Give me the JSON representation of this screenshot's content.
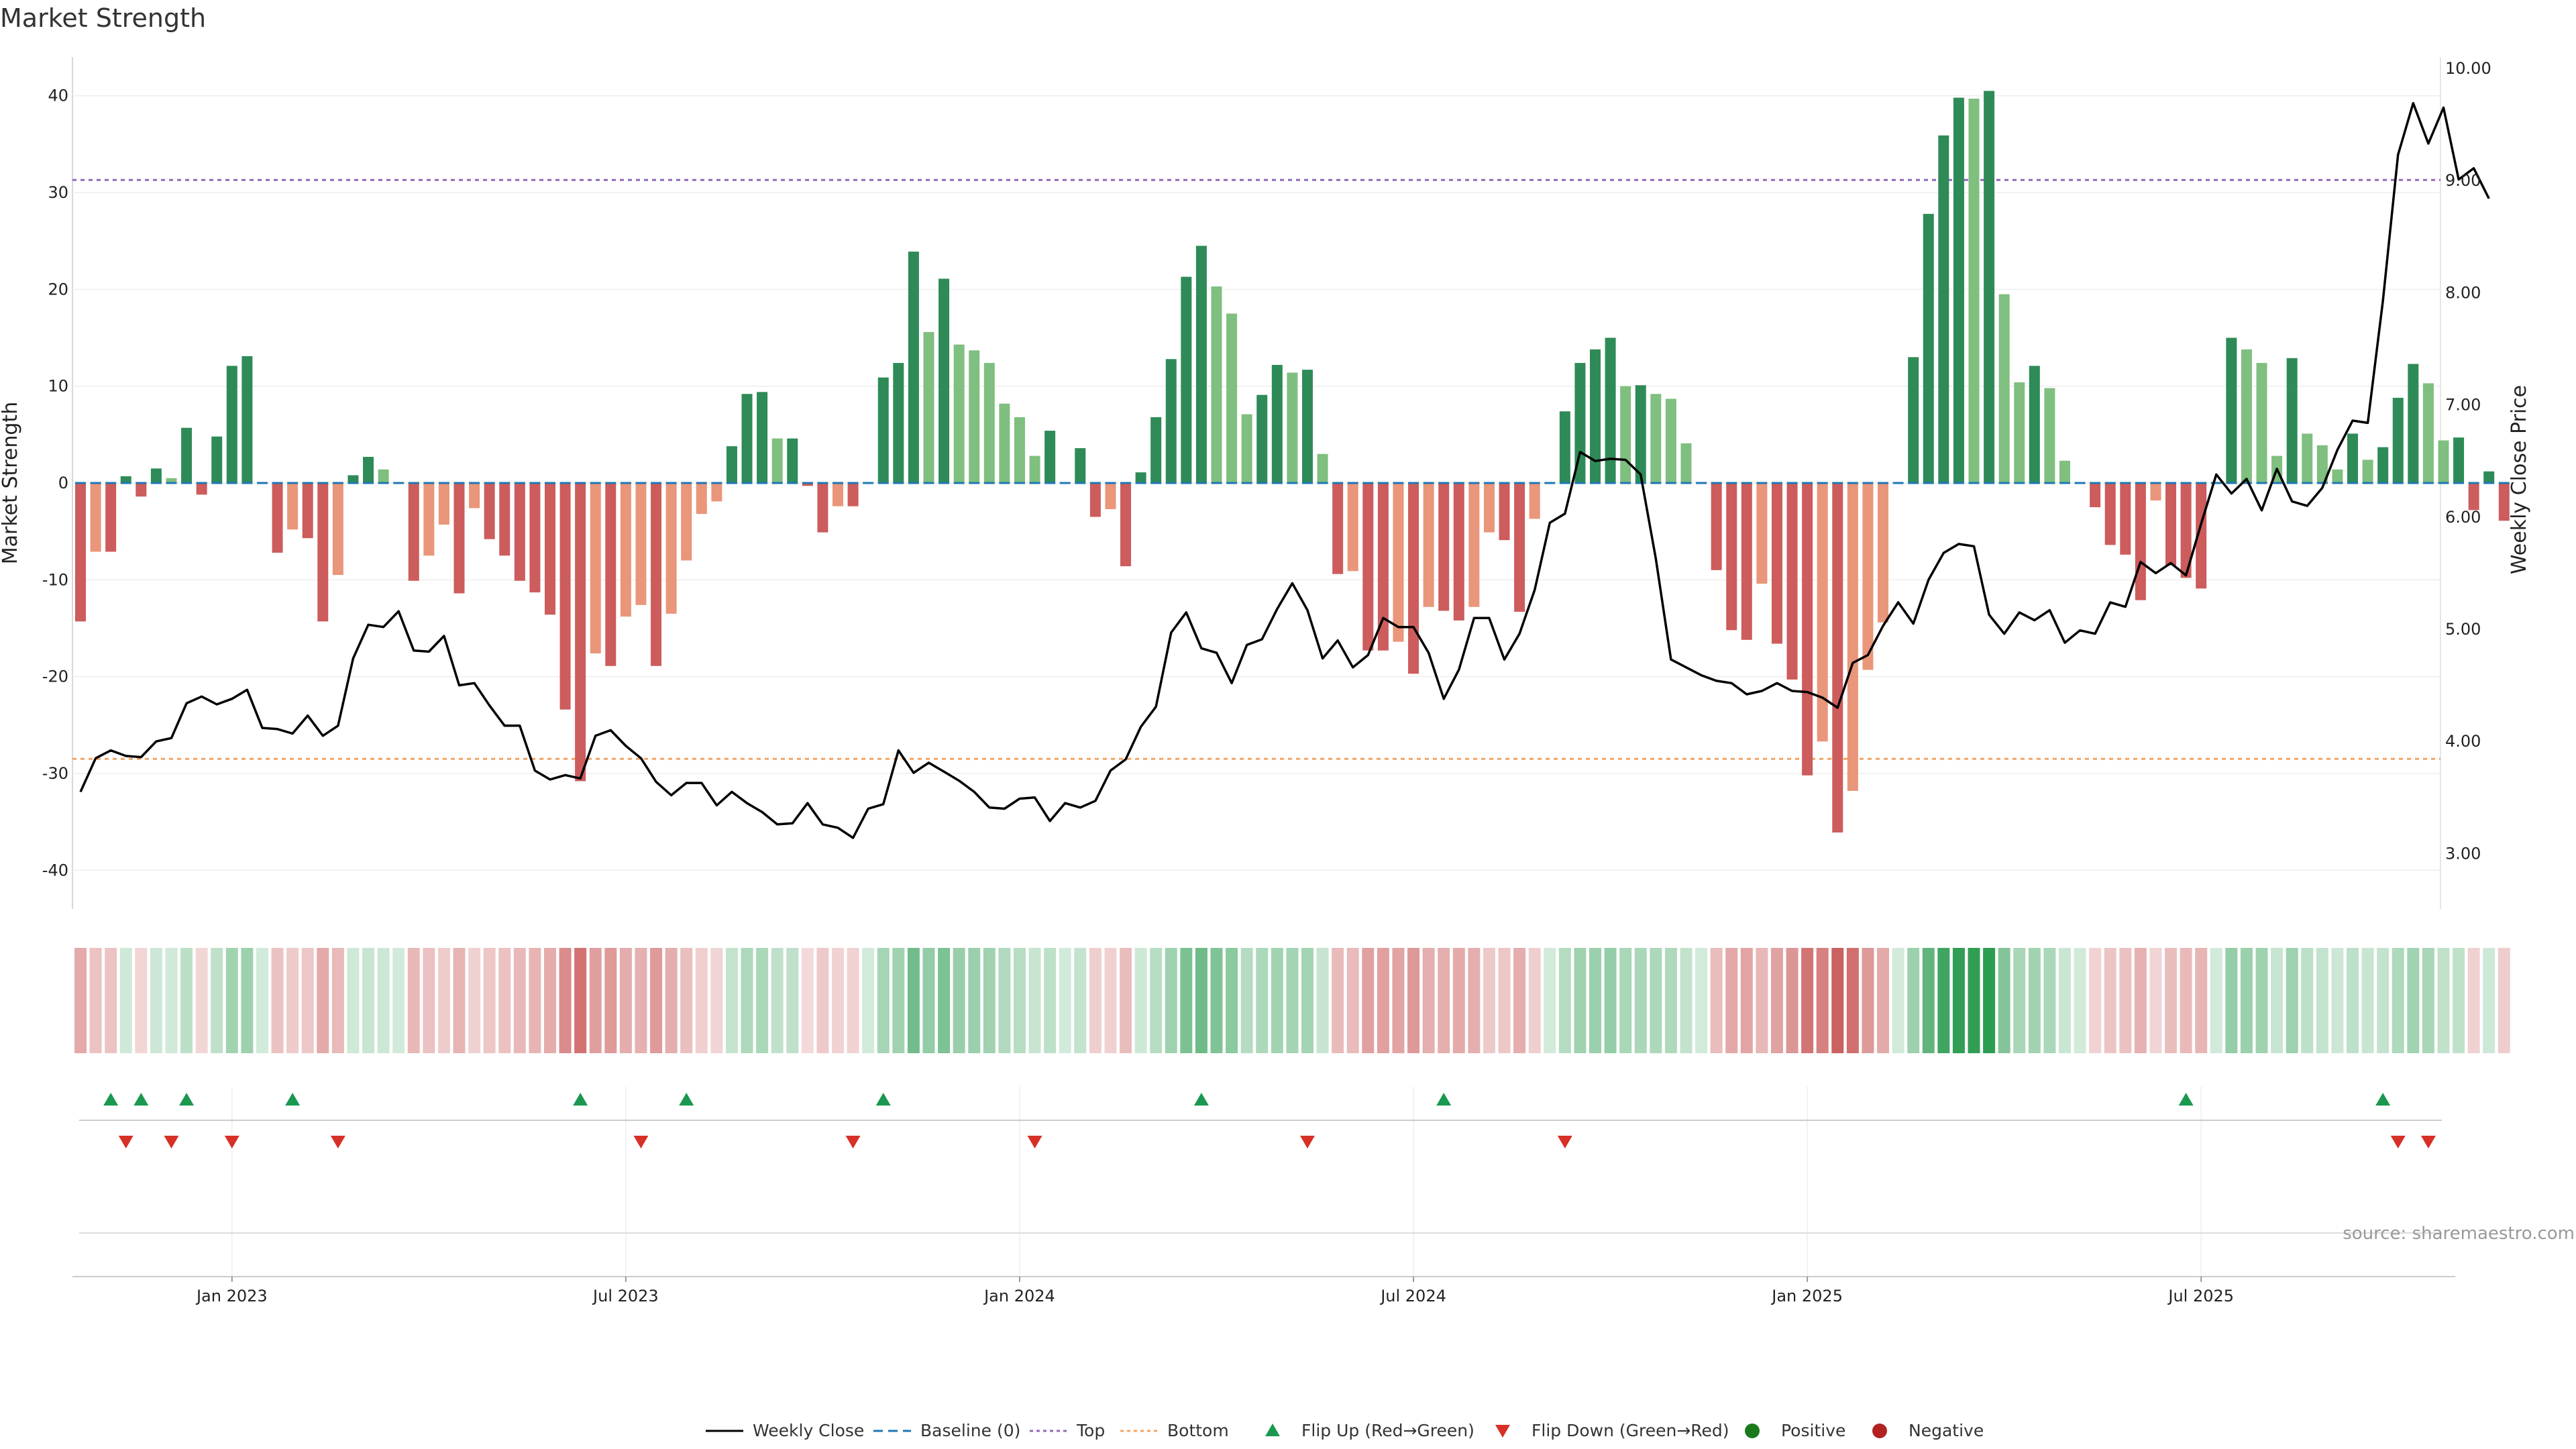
{
  "chart_data": {
    "type": "bar",
    "title": "Market Strength",
    "ylabel": "Market Strength",
    "y2label": "Weekly Close Price",
    "ylim": [
      -44,
      44
    ],
    "y2lim": [
      2.5,
      10.2
    ],
    "yticks": [
      40,
      30,
      20,
      10,
      0,
      -10,
      -20,
      -30,
      -40
    ],
    "y2ticks": [
      "10.00",
      "9.00",
      "8.00",
      "7.00",
      "6.00",
      "5.00",
      "4.00",
      "3.00"
    ],
    "xticks": [
      {
        "label": "Jan 2023",
        "week": 10
      },
      {
        "label": "Jul 2023",
        "week": 36
      },
      {
        "label": "Jan 2024",
        "week": 62
      },
      {
        "label": "Jul 2024",
        "week": 88
      },
      {
        "label": "Jan 2025",
        "week": 114
      },
      {
        "label": "Jul 2025",
        "week": 140
      }
    ],
    "top_line": 31.3,
    "bottom_line": -28.5,
    "baseline": 0,
    "series": [
      {
        "name": "Market Strength",
        "values": [
          -14.3,
          -7.1,
          -7.1,
          0.7,
          -1.4,
          1.5,
          0.5,
          5.7,
          -1.2,
          4.8,
          12.1,
          13.1,
          0,
          -7.2,
          -4.8,
          -5.7,
          -14.3,
          -9.5,
          0.8,
          2.7,
          1.4,
          0,
          -10.1,
          -7.5,
          -4.3,
          -11.4,
          -2.6,
          -5.8,
          -7.5,
          -10.1,
          -11.3,
          -13.6,
          -23.4,
          -30.8,
          -17.6,
          -18.9,
          -13.8,
          -12.6,
          -18.9,
          -13.5,
          -8.0,
          -3.2,
          -1.9,
          3.8,
          9.2,
          9.4,
          4.6,
          4.6,
          -0.3,
          -5.1,
          -2.4,
          -2.4,
          0,
          10.9,
          12.4,
          23.9,
          15.6,
          21.1,
          14.3,
          13.7,
          12.4,
          8.2,
          6.8,
          2.8,
          5.4,
          0,
          3.6,
          -3.5,
          -2.7,
          -8.6,
          1.1,
          6.8,
          12.8,
          21.3,
          24.5,
          20.3,
          17.5,
          7.1,
          9.1,
          12.2,
          11.4,
          11.7,
          3.0,
          -9.4,
          -9.1,
          -17.3,
          -17.3,
          -16.4,
          -19.7,
          -12.8,
          -13.2,
          -14.2,
          -12.8,
          -5.1,
          -5.9,
          -13.3,
          -3.7,
          0,
          7.4,
          12.4,
          13.8,
          15.0,
          10.0,
          10.1,
          9.2,
          8.7,
          4.1,
          0,
          -9.0,
          -15.2,
          -16.2,
          -10.4,
          -16.6,
          -20.3,
          -30.2,
          -26.7,
          -36.1,
          -31.8,
          -19.3,
          -14.4,
          0,
          13.0,
          27.8,
          35.9,
          39.8,
          39.7,
          40.5,
          19.5,
          10.4,
          12.1,
          9.8,
          2.3,
          0,
          -2.5,
          -6.4,
          -7.4,
          -12.1,
          -1.8,
          -8.5,
          -9.8,
          -10.9,
          0,
          15.0,
          13.8,
          12.4,
          2.8,
          12.9,
          5.1,
          3.9,
          1.4,
          5.1,
          2.4,
          3.7,
          8.8,
          12.3,
          10.3,
          4.4,
          4.7,
          -2.8,
          1.2,
          -3.9
        ]
      },
      {
        "name": "Weekly Close",
        "values": [
          3.55,
          3.85,
          3.92,
          3.87,
          3.86,
          4.0,
          4.03,
          4.34,
          4.4,
          4.33,
          4.38,
          4.46,
          4.12,
          4.11,
          4.07,
          4.23,
          4.05,
          4.14,
          4.74,
          5.04,
          5.02,
          5.16,
          4.81,
          4.8,
          4.94,
          4.5,
          4.52,
          4.32,
          4.14,
          4.14,
          3.74,
          3.66,
          3.7,
          3.67,
          4.05,
          4.1,
          3.96,
          3.85,
          3.64,
          3.52,
          3.63,
          3.63,
          3.43,
          3.55,
          3.45,
          3.37,
          3.26,
          3.27,
          3.45,
          3.26,
          3.23,
          3.14,
          3.4,
          3.44,
          3.92,
          3.72,
          3.81,
          3.73,
          3.65,
          3.55,
          3.41,
          3.4,
          3.49,
          3.5,
          3.29,
          3.45,
          3.41,
          3.47,
          3.74,
          3.84,
          4.13,
          4.31,
          4.97,
          5.15,
          4.83,
          4.79,
          4.52,
          4.86,
          4.91,
          5.18,
          5.41,
          5.17,
          4.74,
          4.9,
          4.66,
          4.77,
          5.1,
          5.02,
          5.02,
          4.79,
          4.38,
          4.64,
          5.1,
          5.1,
          4.73,
          4.96,
          5.35,
          5.95,
          6.03,
          6.58,
          6.5,
          6.52,
          6.51,
          6.38,
          5.63,
          4.73,
          4.66,
          4.59,
          4.54,
          4.52,
          4.42,
          4.45,
          4.52,
          4.45,
          4.44,
          4.39,
          4.3,
          4.7,
          4.77,
          5.03,
          5.24,
          5.05,
          5.44,
          5.68,
          5.76,
          5.74,
          5.13,
          4.96,
          5.15,
          5.08,
          5.17,
          4.88,
          4.99,
          4.96,
          5.24,
          5.2,
          5.6,
          5.5,
          5.59,
          5.48,
          5.94,
          6.38,
          6.21,
          6.34,
          6.06,
          6.43,
          6.14,
          6.1,
          6.26,
          6.6,
          6.86,
          6.84,
          7.93,
          9.23,
          9.69,
          9.33,
          9.65,
          9.01,
          9.11,
          8.84
        ]
      }
    ],
    "flip_up_weeks": [
      2,
      4,
      7,
      14,
      33,
      40,
      53,
      74,
      90,
      139,
      152
    ],
    "flip_down_weeks": [
      3,
      6,
      10,
      17,
      37,
      51,
      63,
      81,
      98,
      153,
      155
    ]
  },
  "legend": [
    {
      "label": "Weekly Close"
    },
    {
      "label": "Baseline (0)"
    },
    {
      "label": "Top"
    },
    {
      "label": "Bottom"
    },
    {
      "label": "Flip Up (Red→Green)"
    },
    {
      "label": "Flip Down (Green→Red)"
    },
    {
      "label": "Positive"
    },
    {
      "label": "Negative"
    }
  ],
  "colors": {
    "pos_strong": "#2e8b57",
    "pos_weak": "#7fbf7f",
    "neg_strong": "#cd5c5c",
    "neg_weak": "#e9967a",
    "close_line": "#000000",
    "baseline": "#1f77b4",
    "top": "#9467bd",
    "bottom": "#f4a460",
    "flip_up": "#1a9850",
    "flip_down": "#d73027",
    "positive_dot": "#1a7a1a",
    "negative_dot": "#b22222"
  },
  "source_note": "source: sharemaestro.com"
}
